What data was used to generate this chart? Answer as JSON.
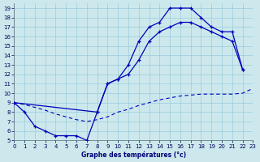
{
  "title": "Graphe des températures (°c)",
  "bg_color": "#cce8ec",
  "grid_color": "#99ccdd",
  "line_color": "#0000bb",
  "xlim": [
    0,
    23
  ],
  "ylim": [
    5,
    19.5
  ],
  "x_ticks": [
    0,
    1,
    2,
    3,
    4,
    5,
    6,
    7,
    8,
    9,
    10,
    11,
    12,
    13,
    14,
    15,
    16,
    17,
    18,
    19,
    20,
    21,
    22,
    23
  ],
  "y_ticks": [
    5,
    6,
    7,
    8,
    9,
    10,
    11,
    12,
    13,
    14,
    15,
    16,
    17,
    18,
    19
  ],
  "curve_main_x": [
    0,
    1,
    2,
    3,
    4,
    5,
    6,
    7,
    8,
    9,
    10,
    11,
    12,
    13,
    14,
    15,
    16,
    17,
    18,
    19,
    20,
    21,
    22
  ],
  "curve_main_y": [
    9.0,
    8.0,
    6.5,
    6.0,
    5.5,
    5.5,
    5.5,
    5.0,
    8.0,
    11.0,
    11.5,
    13.0,
    15.5,
    17.0,
    17.5,
    19.0,
    19.0,
    19.0,
    18.0,
    17.0,
    16.5,
    16.5,
    12.5
  ],
  "curve2_x": [
    0,
    8,
    9,
    10,
    11,
    12,
    13,
    14,
    15,
    16,
    17,
    18,
    19,
    20,
    21,
    22
  ],
  "curve2_y": [
    9.0,
    8.0,
    11.0,
    11.5,
    12.0,
    13.5,
    15.5,
    16.5,
    17.0,
    17.5,
    17.5,
    17.0,
    16.5,
    16.0,
    15.5,
    12.5
  ],
  "curve_dashed_x": [
    0,
    1,
    2,
    3,
    4,
    5,
    6,
    7,
    8,
    9,
    10,
    11,
    12,
    13,
    14,
    15,
    16,
    17,
    18,
    19,
    20,
    21,
    22,
    23
  ],
  "curve_dashed_y": [
    9.0,
    8.8,
    8.5,
    8.2,
    7.8,
    7.5,
    7.2,
    7.0,
    7.2,
    7.5,
    8.0,
    8.3,
    8.7,
    9.0,
    9.3,
    9.5,
    9.7,
    9.8,
    9.9,
    9.9,
    9.9,
    9.9,
    10.0,
    10.5
  ]
}
